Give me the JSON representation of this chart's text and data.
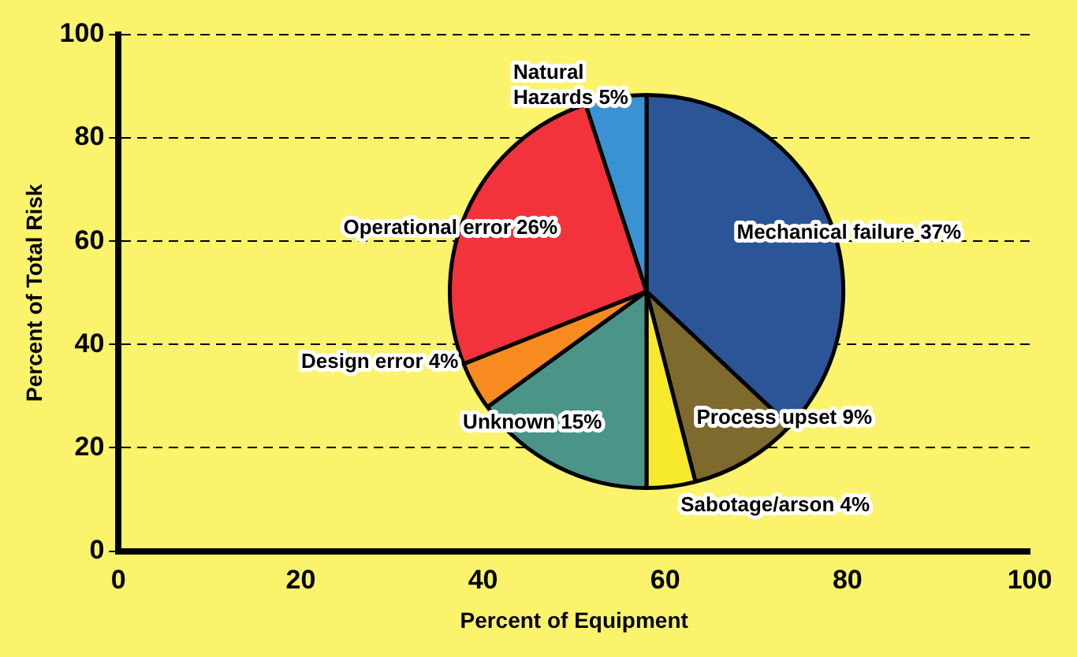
{
  "chart_data": [
    {
      "type": "scatter",
      "xlabel": "Percent of Equipment",
      "ylabel": "Percent of Total Risk",
      "xlim": [
        0,
        100
      ],
      "xticks": [
        0,
        20,
        40,
        60,
        80,
        100
      ],
      "ylim": [
        0,
        100
      ],
      "yticks": [
        0,
        20,
        40,
        60,
        80,
        100
      ],
      "grid": "y",
      "legend": false
    },
    {
      "type": "pie",
      "categories": [
        "Mechanical failure",
        "Process upset",
        "Sabotage/arson",
        "Unknown",
        "Design error",
        "Operational error",
        "Natural Hazards"
      ],
      "values": [
        37,
        9,
        4,
        15,
        4,
        26,
        5
      ],
      "value_labels": [
        "37%",
        "9%",
        "4%",
        "15%",
        "4%",
        "26%",
        "5%"
      ],
      "colors": [
        "#2b5597",
        "#7d6a2c",
        "#f7ea2c",
        "#4a9488",
        "#f78b1f",
        "#f2333b",
        "#3b92d2"
      ],
      "legend": false
    }
  ]
}
